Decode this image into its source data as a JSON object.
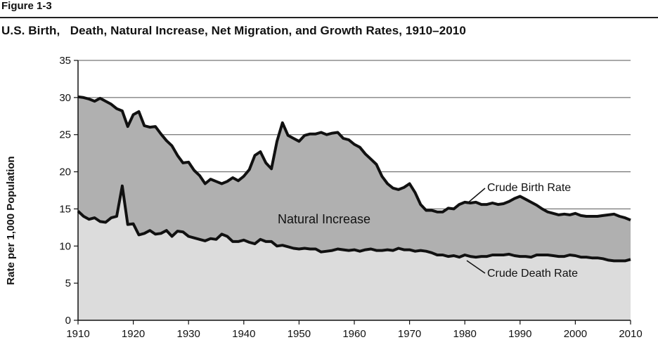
{
  "figure_label": "Figure 1-3",
  "chart_data": {
    "type": "area",
    "title": "U.S. Birth,   Death, Natural Increase, Net Migration, and Growth Rates, 1910–2010",
    "xlabel": "",
    "ylabel": "Rate per 1,000 Population",
    "xlim": [
      1910,
      2010
    ],
    "ylim": [
      0,
      35
    ],
    "x_ticks": [
      1910,
      1920,
      1930,
      1940,
      1950,
      1960,
      1970,
      1980,
      1990,
      2000,
      2010
    ],
    "y_ticks": [
      0,
      5,
      10,
      15,
      20,
      25,
      30,
      35
    ],
    "grid": true,
    "x": [
      1910,
      1911,
      1912,
      1913,
      1914,
      1915,
      1916,
      1917,
      1918,
      1919,
      1920,
      1921,
      1922,
      1923,
      1924,
      1925,
      1926,
      1927,
      1928,
      1929,
      1930,
      1931,
      1932,
      1933,
      1934,
      1935,
      1936,
      1937,
      1938,
      1939,
      1940,
      1941,
      1942,
      1943,
      1944,
      1945,
      1946,
      1947,
      1948,
      1949,
      1950,
      1951,
      1952,
      1953,
      1954,
      1955,
      1956,
      1957,
      1958,
      1959,
      1960,
      1961,
      1962,
      1963,
      1964,
      1965,
      1966,
      1967,
      1968,
      1969,
      1970,
      1971,
      1972,
      1973,
      1974,
      1975,
      1976,
      1977,
      1978,
      1979,
      1980,
      1981,
      1982,
      1983,
      1984,
      1985,
      1986,
      1987,
      1988,
      1989,
      1990,
      1991,
      1992,
      1993,
      1994,
      1995,
      1996,
      1997,
      1998,
      1999,
      2000,
      2001,
      2002,
      2003,
      2004,
      2005,
      2006,
      2007,
      2008,
      2009,
      2010
    ],
    "series": [
      {
        "name": "Crude Birth Rate",
        "values": [
          30.1,
          30.0,
          29.8,
          29.5,
          29.9,
          29.5,
          29.1,
          28.5,
          28.2,
          26.1,
          27.7,
          28.1,
          26.2,
          26.0,
          26.1,
          25.1,
          24.2,
          23.5,
          22.2,
          21.2,
          21.3,
          20.2,
          19.5,
          18.4,
          19.0,
          18.7,
          18.4,
          18.7,
          19.2,
          18.8,
          19.4,
          20.3,
          22.2,
          22.7,
          21.2,
          20.4,
          24.1,
          26.6,
          24.9,
          24.5,
          24.1,
          24.9,
          25.1,
          25.1,
          25.3,
          25.0,
          25.2,
          25.3,
          24.5,
          24.3,
          23.7,
          23.3,
          22.4,
          21.7,
          21.0,
          19.4,
          18.4,
          17.8,
          17.6,
          17.9,
          18.4,
          17.2,
          15.6,
          14.8,
          14.8,
          14.6,
          14.6,
          15.1,
          15.0,
          15.6,
          15.9,
          15.8,
          15.9,
          15.6,
          15.6,
          15.8,
          15.6,
          15.7,
          16.0,
          16.4,
          16.7,
          16.3,
          15.9,
          15.5,
          15.0,
          14.6,
          14.4,
          14.2,
          14.3,
          14.2,
          14.4,
          14.1,
          14.0,
          14.0,
          14.0,
          14.1,
          14.2,
          14.3,
          14.0,
          13.8,
          13.5
        ]
      },
      {
        "name": "Crude Death Rate",
        "values": [
          14.7,
          14.0,
          13.6,
          13.8,
          13.3,
          13.2,
          13.8,
          14.0,
          18.1,
          12.9,
          13.0,
          11.5,
          11.7,
          12.1,
          11.6,
          11.7,
          12.1,
          11.3,
          12.0,
          11.9,
          11.3,
          11.1,
          10.9,
          10.7,
          11.0,
          10.9,
          11.6,
          11.3,
          10.6,
          10.6,
          10.8,
          10.5,
          10.3,
          10.9,
          10.6,
          10.6,
          10.0,
          10.1,
          9.9,
          9.7,
          9.6,
          9.7,
          9.6,
          9.6,
          9.2,
          9.3,
          9.4,
          9.6,
          9.5,
          9.4,
          9.5,
          9.3,
          9.5,
          9.6,
          9.4,
          9.4,
          9.5,
          9.4,
          9.7,
          9.5,
          9.5,
          9.3,
          9.4,
          9.3,
          9.1,
          8.8,
          8.8,
          8.6,
          8.7,
          8.5,
          8.8,
          8.6,
          8.5,
          8.6,
          8.6,
          8.8,
          8.8,
          8.8,
          8.9,
          8.7,
          8.6,
          8.6,
          8.5,
          8.8,
          8.8,
          8.8,
          8.7,
          8.6,
          8.6,
          8.8,
          8.7,
          8.5,
          8.5,
          8.4,
          8.4,
          8.3,
          8.1,
          8.0,
          8.0,
          8.0,
          8.2
        ]
      }
    ],
    "annotations": {
      "birth_label": "Crude Birth Rate",
      "death_label": "Crude Death Rate",
      "region_label": "Natural Increase"
    }
  }
}
